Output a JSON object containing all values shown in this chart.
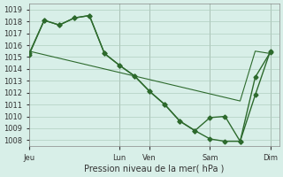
{
  "background_color": "#d8efe8",
  "grid_color": "#b0cfc0",
  "line_color": "#2d6a2d",
  "marker_color": "#2d6a2d",
  "xlabel": "Pression niveau de la mer( hPa )",
  "ylim": [
    1007.5,
    1019.5
  ],
  "yticks": [
    1008,
    1009,
    1010,
    1011,
    1012,
    1013,
    1014,
    1015,
    1016,
    1017,
    1018,
    1019
  ],
  "day_labels": [
    "Jeu",
    "Lun",
    "Ven",
    "Sam",
    "Dim"
  ],
  "day_positions": [
    0,
    3,
    4,
    6,
    8
  ],
  "series1_x": [
    0,
    0.5,
    1.0,
    1.5,
    2.0,
    2.5,
    3.0,
    3.5,
    4.0,
    4.5,
    5.0,
    5.5,
    6.0,
    6.5,
    7.0,
    7.5,
    8.0
  ],
  "series1_y": [
    1015.3,
    1018.1,
    1017.7,
    1018.3,
    1018.5,
    1015.3,
    1014.3,
    1013.4,
    1012.1,
    1011.0,
    1009.6,
    1008.8,
    1009.9,
    1010.0,
    1007.9,
    1011.8,
    1015.5
  ],
  "series2_x": [
    0,
    0.5,
    1.0,
    1.5,
    2.0,
    2.5,
    3.0,
    3.5,
    4.0,
    4.5,
    5.0,
    5.5,
    6.0,
    6.5,
    7.0,
    7.5,
    8.0
  ],
  "series2_y": [
    1015.5,
    1015.2,
    1014.9,
    1014.6,
    1014.3,
    1014.0,
    1013.7,
    1013.4,
    1013.1,
    1012.8,
    1012.5,
    1012.2,
    1011.9,
    1011.6,
    1011.3,
    1015.5,
    1015.3
  ],
  "series3_x": [
    0,
    0.5,
    1.0,
    1.5,
    2.0,
    2.5,
    3.0,
    3.5,
    4.0,
    4.5,
    5.0,
    5.5,
    6.0,
    6.5,
    7.0,
    7.5,
    8.0
  ],
  "series3_y": [
    1015.2,
    1018.1,
    1017.7,
    1018.3,
    1018.5,
    1015.3,
    1014.3,
    1013.4,
    1012.1,
    1011.0,
    1009.6,
    1008.8,
    1008.1,
    1007.9,
    1007.9,
    1013.3,
    1015.4
  ]
}
